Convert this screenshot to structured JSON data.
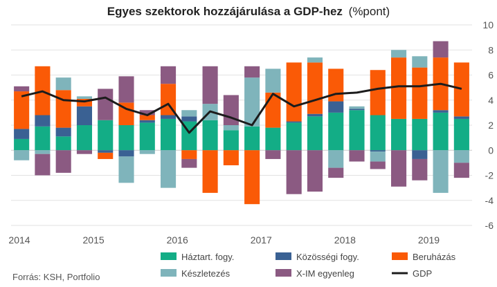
{
  "chart_data": {
    "type": "bar",
    "title": "Egyes szektorok hozzájárulása a GDP-hez",
    "title_unit": "(%pont)",
    "source": "Forrás: KSH, Portfolio",
    "ylim": [
      -6,
      10
    ],
    "yticks": [
      -6,
      -4,
      -2,
      0,
      2,
      4,
      6,
      8,
      10
    ],
    "x_labels": [
      "2014",
      "2015",
      "2016",
      "2017",
      "2018",
      "2019"
    ],
    "x_label_quarter_index": [
      0,
      4,
      8,
      12,
      16,
      20
    ],
    "grid": true,
    "stacked": true,
    "legend_position": "bottom",
    "quarters_count": 22,
    "series": [
      {
        "name": "Háztart. fogy.",
        "key": "hh",
        "color": "#13ad86",
        "values": [
          0.9,
          1.9,
          1.1,
          2.0,
          2.4,
          2.0,
          2.2,
          2.5,
          2.3,
          2.4,
          1.6,
          1.9,
          1.8,
          2.2,
          2.7,
          3.0,
          3.2,
          2.8,
          2.5,
          2.5,
          3.0,
          2.5
        ]
      },
      {
        "name": "Közösségi fogy.",
        "key": "gov",
        "color": "#3a6193",
        "values": [
          0.8,
          0.9,
          0.7,
          1.5,
          -0.2,
          -0.5,
          0.2,
          0.3,
          0.4,
          0.0,
          0.0,
          0.0,
          0.0,
          0.1,
          0.2,
          0.9,
          0.1,
          -0.1,
          0.0,
          -0.7,
          0.2,
          0.2
        ]
      },
      {
        "name": "Beruházás",
        "key": "inv",
        "color": "#fa5a06",
        "values": [
          3.0,
          3.9,
          3.0,
          0.6,
          -0.5,
          1.8,
          0.4,
          2.5,
          -0.7,
          -3.4,
          -1.2,
          -4.3,
          2.8,
          4.7,
          4.1,
          2.6,
          0.0,
          3.6,
          4.9,
          4.1,
          4.2,
          4.3
        ]
      },
      {
        "name": "Készletezés",
        "key": "inv_stock",
        "color": "#7fb4bb",
        "values": [
          -0.8,
          -0.3,
          1.0,
          0.2,
          0.0,
          -2.1,
          -0.3,
          -3.0,
          0.5,
          1.3,
          0.4,
          3.9,
          1.9,
          0.0,
          0.4,
          -1.4,
          0.2,
          -0.8,
          0.6,
          0.9,
          -3.4,
          -1.0
        ]
      },
      {
        "name": "X-IM egyenleg",
        "key": "netx",
        "color": "#8b5a82",
        "values": [
          0.4,
          -1.7,
          -1.8,
          -0.3,
          2.5,
          2.1,
          0.4,
          1.4,
          -0.7,
          3.0,
          2.4,
          0.9,
          -0.7,
          -3.5,
          -3.3,
          -0.8,
          -0.9,
          -0.6,
          -2.9,
          -1.7,
          1.3,
          -1.2
        ]
      }
    ],
    "line": {
      "name": "GDP",
      "key": "gdp",
      "color": "#1c1c1c",
      "values": [
        4.3,
        4.7,
        4.0,
        3.9,
        4.2,
        3.3,
        2.8,
        3.7,
        1.4,
        3.1,
        2.6,
        2.0,
        4.5,
        3.5,
        4.0,
        4.5,
        4.6,
        4.9,
        5.1,
        5.1,
        5.3,
        4.9
      ]
    }
  }
}
